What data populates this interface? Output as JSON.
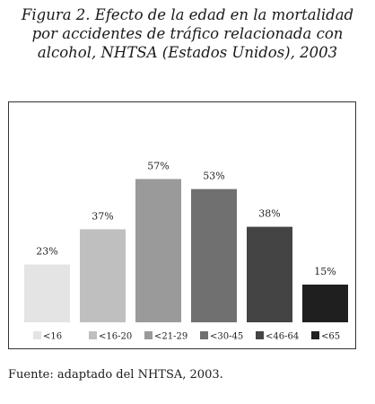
{
  "figure": {
    "title_lines": [
      "Figura 2. Efecto de la edad en la mortalidad",
      "por accidentes de tráfico relacionada con",
      "alcohol, NHTSA (Estados Unidos), 2003"
    ],
    "source": "Fuente: adaptado del NHTSA, 2003."
  },
  "chart_data": {
    "type": "bar",
    "categories": [
      "<16",
      "<16-20",
      "<21-29",
      "<30-45",
      "<46-64",
      "<65"
    ],
    "values": [
      23,
      37,
      57,
      53,
      38,
      15
    ],
    "value_labels": [
      "23%",
      "37%",
      "57%",
      "53%",
      "38%",
      "15%"
    ],
    "colors": [
      "#e4e4e4",
      "#bfbfbf",
      "#9a9a9a",
      "#707070",
      "#444444",
      "#1f1f1f"
    ],
    "ylim": [
      0,
      60
    ],
    "grid": false,
    "legend": "bottom",
    "title": "",
    "xlabel": "",
    "ylabel": ""
  }
}
